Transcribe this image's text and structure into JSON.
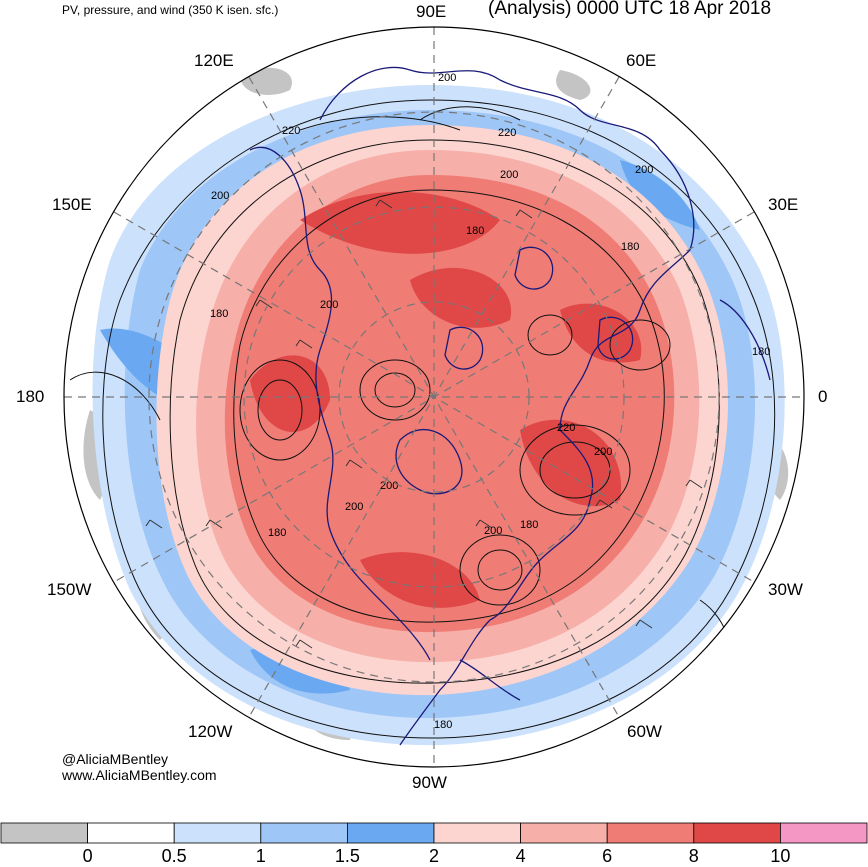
{
  "header": {
    "left_title": "PV, pressure, and wind (350 K isen. sfc.)",
    "right_title": "(Analysis) 0000 UTC 18 Apr 2018"
  },
  "credits": {
    "handle": "@AliciaMBentley",
    "website": "www.AliciaMBentley.com"
  },
  "longitude_labels": [
    {
      "id": "90e",
      "text": "90E"
    },
    {
      "id": "60e",
      "text": "60E"
    },
    {
      "id": "120e",
      "text": "120E"
    },
    {
      "id": "30e",
      "text": "30E"
    },
    {
      "id": "150e",
      "text": "150E"
    },
    {
      "id": "180",
      "text": "180"
    },
    {
      "id": "0",
      "text": "0"
    },
    {
      "id": "150w",
      "text": "150W"
    },
    {
      "id": "30w",
      "text": "30W"
    },
    {
      "id": "120w",
      "text": "120W"
    },
    {
      "id": "60w",
      "text": "60W"
    },
    {
      "id": "90w",
      "text": "90W"
    }
  ],
  "contour_labels": [
    "200",
    "220",
    "220",
    "200",
    "200",
    "180",
    "200",
    "180",
    "180",
    "200",
    "180",
    "220",
    "200",
    "200",
    "200",
    "200",
    "180",
    "180",
    "180"
  ],
  "colorbar": {
    "colors": [
      "#c4c4c4",
      "#ffffff",
      "#cce1fb",
      "#9ec6f7",
      "#6aa9f2",
      "#fcd5d0",
      "#f7b0a9",
      "#ef7d76",
      "#e04848",
      "#f597c4"
    ],
    "labels": [
      "0",
      "0.5",
      "1",
      "1.5",
      "2",
      "4",
      "6",
      "8",
      "10"
    ]
  },
  "colors": {
    "pv_high": "#e04848",
    "pv_mid": "#ef7d76",
    "pv_low": "#fcd5d0",
    "pv_blue": "#9ec6f7",
    "coastline": "#1a1a7a",
    "pressure_contour": "#111111"
  }
}
